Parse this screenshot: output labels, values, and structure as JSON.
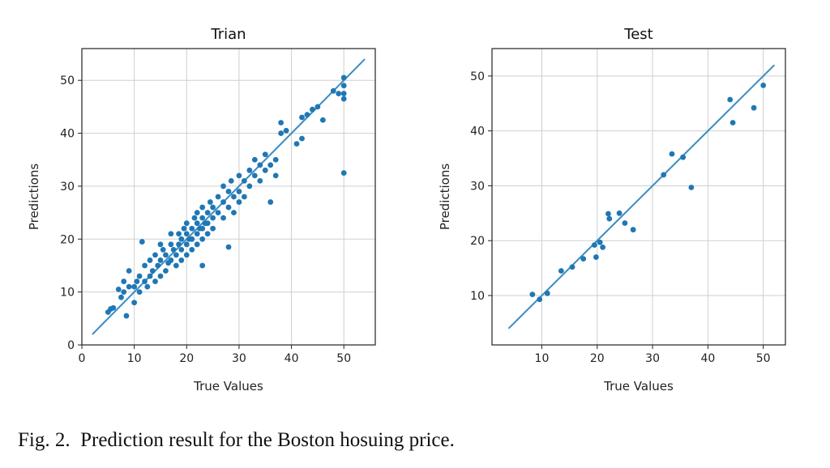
{
  "caption": {
    "label": "Fig. 2.",
    "text": "Prediction result for the Boston hosuing price."
  },
  "colors": {
    "point": "#1f77b4",
    "line": "#3a8cc3",
    "grid": "#cfcfcf",
    "axis": "#222222"
  },
  "chart_data": [
    {
      "type": "scatter",
      "title": "Trian",
      "xlabel": "True Values",
      "ylabel": "Predictions",
      "xlim": [
        0,
        56
      ],
      "ylim": [
        0,
        56
      ],
      "xticks": [
        0,
        10,
        20,
        30,
        40,
        50
      ],
      "yticks": [
        0,
        10,
        20,
        30,
        40,
        50
      ],
      "grid": true,
      "identity_line": [
        2,
        54
      ],
      "points": [
        [
          5,
          6.2
        ],
        [
          5.5,
          6.8
        ],
        [
          6,
          7
        ],
        [
          7,
          10.5
        ],
        [
          7.5,
          9
        ],
        [
          8,
          10
        ],
        [
          8,
          12
        ],
        [
          8.5,
          5.5
        ],
        [
          9,
          14
        ],
        [
          9,
          11
        ],
        [
          10,
          8
        ],
        [
          10,
          11
        ],
        [
          10.5,
          12
        ],
        [
          11,
          10
        ],
        [
          11,
          13
        ],
        [
          11.5,
          19.5
        ],
        [
          12,
          12
        ],
        [
          12,
          15
        ],
        [
          12.5,
          11
        ],
        [
          13,
          13
        ],
        [
          13,
          16
        ],
        [
          13.5,
          14
        ],
        [
          14,
          12
        ],
        [
          14,
          17
        ],
        [
          14.5,
          15
        ],
        [
          15,
          13
        ],
        [
          15,
          16
        ],
        [
          15,
          19
        ],
        [
          15.5,
          18
        ],
        [
          16,
          14
        ],
        [
          16,
          17
        ],
        [
          16.5,
          15.5
        ],
        [
          17,
          16
        ],
        [
          17,
          19
        ],
        [
          17,
          21
        ],
        [
          17.5,
          18
        ],
        [
          18,
          15
        ],
        [
          18,
          17
        ],
        [
          18.5,
          19
        ],
        [
          18.5,
          21
        ],
        [
          19,
          16
        ],
        [
          19,
          18
        ],
        [
          19,
          20
        ],
        [
          19.5,
          22
        ],
        [
          20,
          17
        ],
        [
          20,
          19
        ],
        [
          20,
          21
        ],
        [
          20,
          23
        ],
        [
          20.5,
          20
        ],
        [
          21,
          18
        ],
        [
          21,
          20
        ],
        [
          21,
          22
        ],
        [
          21.5,
          24
        ],
        [
          22,
          19
        ],
        [
          22,
          21
        ],
        [
          22,
          23
        ],
        [
          22,
          25
        ],
        [
          22.5,
          22
        ],
        [
          23,
          15
        ],
        [
          23,
          20
        ],
        [
          23,
          22
        ],
        [
          23,
          24
        ],
        [
          23,
          26
        ],
        [
          23.5,
          23
        ],
        [
          24,
          21
        ],
        [
          24,
          23
        ],
        [
          24,
          25
        ],
        [
          24.5,
          27
        ],
        [
          25,
          22
        ],
        [
          25,
          24
        ],
        [
          25,
          26
        ],
        [
          26,
          25
        ],
        [
          26,
          28
        ],
        [
          27,
          24
        ],
        [
          27,
          27
        ],
        [
          27,
          30
        ],
        [
          28,
          18.5
        ],
        [
          28,
          26
        ],
        [
          28,
          29
        ],
        [
          28.5,
          31
        ],
        [
          29,
          25
        ],
        [
          29,
          28
        ],
        [
          30,
          27
        ],
        [
          30,
          29
        ],
        [
          30,
          32
        ],
        [
          31,
          28
        ],
        [
          31,
          31
        ],
        [
          32,
          30
        ],
        [
          32,
          33
        ],
        [
          33,
          32
        ],
        [
          33,
          35
        ],
        [
          34,
          31
        ],
        [
          34,
          34
        ],
        [
          35,
          33
        ],
        [
          35,
          36
        ],
        [
          36,
          27
        ],
        [
          36,
          34
        ],
        [
          37,
          32
        ],
        [
          37,
          35
        ],
        [
          38,
          40
        ],
        [
          38,
          42
        ],
        [
          39,
          40.5
        ],
        [
          41,
          38
        ],
        [
          42,
          39
        ],
        [
          42,
          43
        ],
        [
          43,
          43.5
        ],
        [
          44,
          44.5
        ],
        [
          45,
          45
        ],
        [
          46,
          42.5
        ],
        [
          48,
          48
        ],
        [
          49,
          47.5
        ],
        [
          50,
          46.5
        ],
        [
          50,
          47.5
        ],
        [
          50,
          49
        ],
        [
          50,
          50.5
        ],
        [
          50,
          32.5
        ]
      ]
    },
    {
      "type": "scatter",
      "title": "Test",
      "xlabel": "True Values",
      "ylabel": "Predictions",
      "xlim": [
        1,
        54
      ],
      "ylim": [
        1,
        55
      ],
      "xticks": [
        10,
        20,
        30,
        40,
        50
      ],
      "yticks": [
        10,
        20,
        30,
        40,
        50
      ],
      "grid": true,
      "identity_line": [
        4,
        52
      ],
      "points": [
        [
          8.3,
          10.2
        ],
        [
          9.6,
          9.3
        ],
        [
          11.0,
          10.4
        ],
        [
          13.5,
          14.5
        ],
        [
          15.5,
          15.2
        ],
        [
          17.5,
          16.7
        ],
        [
          19.5,
          19.2
        ],
        [
          19.8,
          17.0
        ],
        [
          20.5,
          19.7
        ],
        [
          21.0,
          18.8
        ],
        [
          22.0,
          24.9
        ],
        [
          22.2,
          24.0
        ],
        [
          24.0,
          25.0
        ],
        [
          25.0,
          23.2
        ],
        [
          26.5,
          22.0
        ],
        [
          32.0,
          32.0
        ],
        [
          33.5,
          35.8
        ],
        [
          35.5,
          35.2
        ],
        [
          37.0,
          29.7
        ],
        [
          44.0,
          45.7
        ],
        [
          44.5,
          41.5
        ],
        [
          48.3,
          44.2
        ],
        [
          50.0,
          48.3
        ]
      ]
    }
  ]
}
